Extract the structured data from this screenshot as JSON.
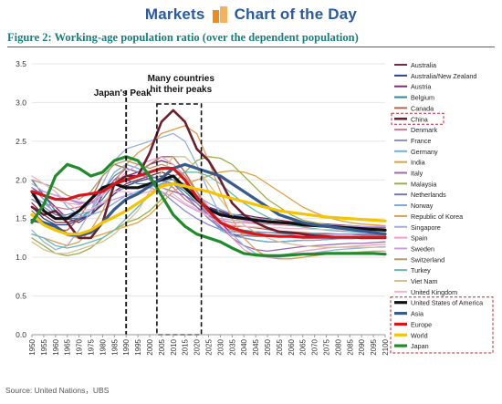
{
  "header": {
    "markets": "Markets",
    "chart_of_day": "Chart of the Day"
  },
  "figure_title": "Figure 2:  Working-age population ratio (over the dependent population)",
  "source": "Source: United Nations，UBS",
  "colors": {
    "Australia": "#7b2a44",
    "Australia/New Zealand": "#2e3f8f",
    "Austria": "#7a2f72",
    "Belgium": "#2b8a9a",
    "Canada": "#b0664a",
    "China": "#6a1e2e",
    "Denmark": "#d47a8e",
    "France": "#8a8ed0",
    "Germany": "#6fb3d8",
    "India": "#e0a040",
    "Italy": "#9b6bb8",
    "Malaysia": "#9ab04a",
    "Netherlands": "#7777bb",
    "Norway": "#80a8e0",
    "Republic of Korea": "#e49a50",
    "Singapore": "#9db0d8",
    "Spain": "#f0a0c0",
    "Sweden": "#c8a0e0",
    "Switzerland": "#b59a6a",
    "Turkey": "#68b8b0",
    "Viet Nam": "#d6c090",
    "United Kingdom": "#f3b8c8",
    "United States of America": "#111111",
    "Asia": "#365b8c",
    "Europe": "#d8151d",
    "World": "#f5c400",
    "Japan": "#1f8c2a"
  },
  "chart_data": {
    "type": "line",
    "title": "Working-age population ratio (over the dependent population)",
    "x": [
      1950,
      1955,
      1960,
      1965,
      1970,
      1975,
      1980,
      1985,
      1990,
      1995,
      2000,
      2005,
      2010,
      2015,
      2020,
      2025,
      2030,
      2035,
      2040,
      2045,
      2050,
      2055,
      2060,
      2065,
      2070,
      2075,
      2080,
      2085,
      2090,
      2095,
      2100
    ],
    "ylim": [
      0,
      3.5
    ],
    "yticks": [
      "0.0",
      "0.5",
      "1.0",
      "1.5",
      "2.0",
      "2.5",
      "3.0",
      "3.5"
    ],
    "annotations": [
      "Japan's Peak",
      "Many countries\nhit their peaks"
    ],
    "highlighted_legend": "China",
    "series": [
      {
        "name": "Australia",
        "width": 1.3,
        "values": [
          1.7,
          1.55,
          1.45,
          1.45,
          1.5,
          1.55,
          1.7,
          1.85,
          1.95,
          2.0,
          2.05,
          2.1,
          2.05,
          1.9,
          1.75,
          1.65,
          1.6,
          1.55,
          1.55,
          1.52,
          1.5,
          1.48,
          1.46,
          1.45,
          1.44,
          1.43,
          1.42,
          1.41,
          1.4,
          1.4,
          1.4
        ]
      },
      {
        "name": "Australia/New Zealand",
        "width": 1.3,
        "values": [
          1.65,
          1.5,
          1.42,
          1.42,
          1.48,
          1.55,
          1.68,
          1.82,
          1.92,
          1.98,
          2.02,
          2.05,
          2.0,
          1.88,
          1.75,
          1.65,
          1.58,
          1.54,
          1.52,
          1.5,
          1.48,
          1.46,
          1.45,
          1.44,
          1.43,
          1.42,
          1.41,
          1.4,
          1.4,
          1.39,
          1.39
        ]
      },
      {
        "name": "Austria",
        "width": 1.3,
        "values": [
          1.9,
          1.8,
          1.65,
          1.5,
          1.45,
          1.55,
          1.8,
          2.0,
          2.05,
          2.1,
          2.2,
          2.25,
          2.2,
          2.05,
          1.85,
          1.65,
          1.45,
          1.3,
          1.25,
          1.22,
          1.2,
          1.2,
          1.21,
          1.22,
          1.22,
          1.23,
          1.24,
          1.24,
          1.25,
          1.25,
          1.26
        ]
      },
      {
        "name": "Belgium",
        "width": 1.3,
        "values": [
          2.0,
          1.8,
          1.6,
          1.5,
          1.5,
          1.6,
          1.75,
          1.95,
          2.0,
          1.95,
          1.95,
          2.0,
          1.95,
          1.85,
          1.7,
          1.55,
          1.45,
          1.38,
          1.35,
          1.33,
          1.32,
          1.31,
          1.3,
          1.3,
          1.3,
          1.3,
          1.3,
          1.3,
          1.29,
          1.29,
          1.29
        ]
      },
      {
        "name": "Canada",
        "width": 1.3,
        "values": [
          1.6,
          1.45,
          1.35,
          1.35,
          1.5,
          1.75,
          2.05,
          2.2,
          2.15,
          2.1,
          2.2,
          2.3,
          2.3,
          2.1,
          1.85,
          1.6,
          1.45,
          1.4,
          1.4,
          1.38,
          1.36,
          1.34,
          1.33,
          1.32,
          1.31,
          1.3,
          1.3,
          1.3,
          1.29,
          1.29,
          1.29
        ]
      },
      {
        "name": "China",
        "width": 2.6,
        "values": [
          1.65,
          1.55,
          1.6,
          1.45,
          1.25,
          1.25,
          1.45,
          1.95,
          2.05,
          2.05,
          2.35,
          2.75,
          2.9,
          2.75,
          2.4,
          2.25,
          2.0,
          1.7,
          1.55,
          1.45,
          1.38,
          1.33,
          1.32,
          1.3,
          1.28,
          1.27,
          1.26,
          1.26,
          1.25,
          1.25,
          1.25
        ]
      },
      {
        "name": "Denmark",
        "width": 1.3,
        "values": [
          1.8,
          1.7,
          1.65,
          1.62,
          1.65,
          1.7,
          1.8,
          1.95,
          2.0,
          2.05,
          2.05,
          2.0,
          1.9,
          1.75,
          1.65,
          1.55,
          1.48,
          1.45,
          1.45,
          1.44,
          1.43,
          1.42,
          1.41,
          1.4,
          1.4,
          1.4,
          1.39,
          1.39,
          1.39,
          1.38,
          1.38
        ]
      },
      {
        "name": "France",
        "width": 1.3,
        "values": [
          1.9,
          1.75,
          1.55,
          1.5,
          1.55,
          1.6,
          1.7,
          1.85,
          1.9,
          1.9,
          1.9,
          1.85,
          1.72,
          1.6,
          1.5,
          1.42,
          1.36,
          1.33,
          1.32,
          1.32,
          1.32,
          1.32,
          1.32,
          1.31,
          1.31,
          1.31,
          1.3,
          1.3,
          1.3,
          1.3,
          1.3
        ]
      },
      {
        "name": "Germany",
        "width": 1.3,
        "values": [
          2.05,
          1.95,
          1.85,
          1.65,
          1.55,
          1.6,
          1.85,
          2.1,
          2.2,
          2.15,
          2.05,
          2.0,
          2.0,
          1.95,
          1.75,
          1.55,
          1.35,
          1.28,
          1.25,
          1.22,
          1.2,
          1.2,
          1.21,
          1.22,
          1.22,
          1.23,
          1.24,
          1.24,
          1.25,
          1.25,
          1.25
        ]
      },
      {
        "name": "India",
        "width": 1.3,
        "values": [
          1.55,
          1.45,
          1.38,
          1.28,
          1.25,
          1.25,
          1.3,
          1.35,
          1.4,
          1.45,
          1.55,
          1.7,
          1.85,
          1.95,
          2.0,
          2.05,
          2.1,
          2.12,
          2.1,
          2.05,
          1.95,
          1.85,
          1.75,
          1.65,
          1.58,
          1.52,
          1.48,
          1.45,
          1.43,
          1.42,
          1.41
        ]
      },
      {
        "name": "Italy",
        "width": 1.3,
        "values": [
          1.85,
          1.85,
          1.8,
          1.75,
          1.7,
          1.7,
          1.8,
          2.0,
          2.15,
          2.1,
          2.0,
          1.9,
          1.85,
          1.8,
          1.7,
          1.55,
          1.4,
          1.25,
          1.15,
          1.1,
          1.08,
          1.1,
          1.12,
          1.14,
          1.15,
          1.16,
          1.17,
          1.18,
          1.18,
          1.19,
          1.2
        ]
      },
      {
        "name": "Malaysia",
        "width": 1.3,
        "values": [
          1.25,
          1.15,
          1.05,
          1.02,
          1.05,
          1.12,
          1.25,
          1.35,
          1.45,
          1.5,
          1.6,
          1.75,
          1.95,
          2.1,
          2.25,
          2.3,
          2.28,
          2.2,
          2.05,
          1.9,
          1.75,
          1.65,
          1.55,
          1.48,
          1.45,
          1.42,
          1.4,
          1.38,
          1.37,
          1.36,
          1.35
        ]
      },
      {
        "name": "Netherlands",
        "width": 1.3,
        "values": [
          1.75,
          1.65,
          1.55,
          1.55,
          1.6,
          1.7,
          1.85,
          2.05,
          2.15,
          2.1,
          2.05,
          2.0,
          1.95,
          1.8,
          1.65,
          1.5,
          1.38,
          1.3,
          1.28,
          1.27,
          1.27,
          1.27,
          1.27,
          1.27,
          1.27,
          1.27,
          1.27,
          1.27,
          1.27,
          1.27,
          1.27
        ]
      },
      {
        "name": "Norway",
        "width": 1.3,
        "values": [
          1.8,
          1.7,
          1.58,
          1.52,
          1.52,
          1.55,
          1.6,
          1.7,
          1.8,
          1.85,
          1.9,
          1.95,
          1.95,
          1.88,
          1.8,
          1.7,
          1.62,
          1.56,
          1.53,
          1.5,
          1.48,
          1.46,
          1.45,
          1.44,
          1.43,
          1.42,
          1.41,
          1.41,
          1.4,
          1.4,
          1.4
        ]
      },
      {
        "name": "Republic of Korea",
        "width": 1.3,
        "values": [
          1.3,
          1.25,
          1.2,
          1.15,
          1.2,
          1.35,
          1.6,
          1.95,
          2.2,
          2.35,
          2.45,
          2.6,
          2.65,
          2.7,
          2.6,
          2.25,
          1.85,
          1.5,
          1.25,
          1.1,
          1.0,
          0.98,
          0.98,
          1.0,
          1.02,
          1.04,
          1.05,
          1.06,
          1.07,
          1.08,
          1.08
        ]
      },
      {
        "name": "Singapore",
        "width": 1.3,
        "values": [
          1.35,
          1.2,
          1.1,
          1.15,
          1.35,
          1.6,
          1.95,
          2.25,
          2.4,
          2.45,
          2.5,
          2.55,
          2.6,
          2.5,
          2.2,
          1.85,
          1.55,
          1.3,
          1.15,
          1.05,
          1.0,
          1.0,
          1.02,
          1.04,
          1.06,
          1.08,
          1.1,
          1.11,
          1.12,
          1.13,
          1.14
        ]
      },
      {
        "name": "Spain",
        "width": 1.3,
        "values": [
          1.85,
          1.8,
          1.75,
          1.7,
          1.68,
          1.72,
          1.8,
          1.95,
          2.1,
          2.2,
          2.25,
          2.3,
          2.2,
          2.05,
          1.85,
          1.65,
          1.45,
          1.25,
          1.1,
          1.02,
          1.0,
          1.02,
          1.05,
          1.08,
          1.1,
          1.12,
          1.13,
          1.14,
          1.15,
          1.16,
          1.17
        ]
      },
      {
        "name": "Sweden",
        "width": 1.3,
        "values": [
          1.95,
          1.85,
          1.8,
          1.75,
          1.72,
          1.7,
          1.7,
          1.75,
          1.8,
          1.82,
          1.85,
          1.85,
          1.78,
          1.68,
          1.6,
          1.55,
          1.5,
          1.48,
          1.47,
          1.46,
          1.45,
          1.44,
          1.43,
          1.42,
          1.42,
          1.41,
          1.41,
          1.4,
          1.4,
          1.4,
          1.4
        ]
      },
      {
        "name": "Switzerland",
        "width": 1.3,
        "values": [
          2.0,
          1.95,
          1.9,
          1.8,
          1.75,
          1.85,
          2.05,
          2.2,
          2.25,
          2.2,
          2.15,
          2.2,
          2.15,
          2.05,
          1.85,
          1.62,
          1.45,
          1.35,
          1.3,
          1.28,
          1.27,
          1.27,
          1.27,
          1.27,
          1.27,
          1.27,
          1.27,
          1.27,
          1.27,
          1.27,
          1.27
        ]
      },
      {
        "name": "Turkey",
        "width": 1.3,
        "values": [
          1.3,
          1.25,
          1.15,
          1.12,
          1.15,
          1.2,
          1.25,
          1.35,
          1.5,
          1.65,
          1.8,
          1.95,
          2.05,
          2.1,
          2.1,
          2.05,
          1.95,
          1.82,
          1.7,
          1.6,
          1.52,
          1.46,
          1.42,
          1.39,
          1.37,
          1.35,
          1.34,
          1.33,
          1.32,
          1.32,
          1.32
        ]
      },
      {
        "name": "Viet Nam",
        "width": 1.3,
        "values": [
          1.2,
          1.1,
          1.05,
          1.05,
          1.1,
          1.15,
          1.2,
          1.3,
          1.45,
          1.6,
          1.85,
          2.1,
          2.3,
          2.3,
          2.15,
          1.95,
          1.75,
          1.55,
          1.42,
          1.32,
          1.25,
          1.2,
          1.17,
          1.15,
          1.14,
          1.13,
          1.13,
          1.13,
          1.13,
          1.13,
          1.13
        ]
      },
      {
        "name": "United Kingdom",
        "width": 1.3,
        "values": [
          2.05,
          1.95,
          1.85,
          1.7,
          1.6,
          1.62,
          1.7,
          1.85,
          1.85,
          1.82,
          1.85,
          1.9,
          1.82,
          1.7,
          1.62,
          1.52,
          1.45,
          1.42,
          1.4,
          1.39,
          1.38,
          1.38,
          1.37,
          1.37,
          1.36,
          1.36,
          1.36,
          1.35,
          1.35,
          1.35,
          1.35
        ]
      },
      {
        "name": "United States of America",
        "width": 3.2,
        "values": [
          1.85,
          1.6,
          1.5,
          1.5,
          1.6,
          1.75,
          1.9,
          1.95,
          1.9,
          1.9,
          1.95,
          2.0,
          2.05,
          1.9,
          1.75,
          1.62,
          1.55,
          1.52,
          1.5,
          1.48,
          1.46,
          1.45,
          1.44,
          1.42,
          1.41,
          1.4,
          1.39,
          1.38,
          1.37,
          1.36,
          1.35
        ]
      },
      {
        "name": "Asia",
        "width": 3.2,
        "values": [
          1.48,
          1.45,
          1.4,
          1.3,
          1.28,
          1.32,
          1.45,
          1.62,
          1.75,
          1.82,
          1.92,
          2.02,
          2.15,
          2.2,
          2.15,
          2.1,
          2.05,
          1.95,
          1.85,
          1.75,
          1.65,
          1.55,
          1.5,
          1.45,
          1.42,
          1.4,
          1.38,
          1.36,
          1.34,
          1.32,
          1.3
        ]
      },
      {
        "name": "Europe",
        "width": 3.2,
        "values": [
          1.85,
          1.8,
          1.75,
          1.75,
          1.8,
          1.82,
          1.85,
          1.95,
          2.0,
          2.05,
          2.1,
          2.15,
          2.15,
          2.0,
          1.78,
          1.6,
          1.45,
          1.38,
          1.33,
          1.3,
          1.28,
          1.27,
          1.27,
          1.26,
          1.26,
          1.26,
          1.26,
          1.26,
          1.26,
          1.26,
          1.26
        ]
      },
      {
        "name": "World",
        "width": 3.2,
        "values": [
          1.55,
          1.42,
          1.35,
          1.3,
          1.3,
          1.35,
          1.45,
          1.52,
          1.6,
          1.7,
          1.8,
          1.92,
          1.95,
          1.92,
          1.88,
          1.85,
          1.8,
          1.76,
          1.72,
          1.68,
          1.64,
          1.6,
          1.58,
          1.56,
          1.54,
          1.52,
          1.51,
          1.5,
          1.49,
          1.48,
          1.47
        ]
      },
      {
        "name": "Japan",
        "width": 3.2,
        "values": [
          1.45,
          1.68,
          2.05,
          2.2,
          2.15,
          2.05,
          2.1,
          2.25,
          2.3,
          2.25,
          2.05,
          1.8,
          1.55,
          1.4,
          1.3,
          1.25,
          1.2,
          1.12,
          1.05,
          1.03,
          1.02,
          1.02,
          1.03,
          1.04,
          1.04,
          1.05,
          1.05,
          1.05,
          1.05,
          1.05,
          1.04
        ]
      }
    ]
  }
}
